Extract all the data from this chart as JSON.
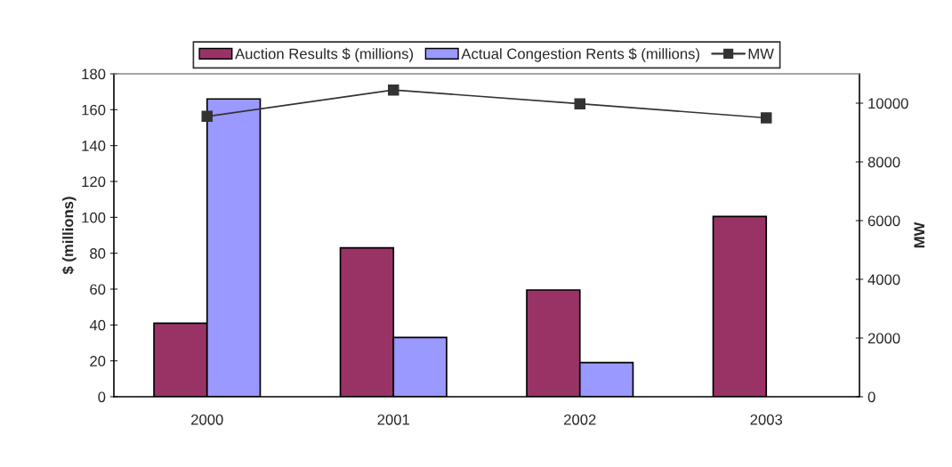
{
  "chart_data": {
    "type": "bar",
    "categories": [
      "2000",
      "2001",
      "2002",
      "2003"
    ],
    "ylabel": "$ (millions)",
    "y2label": "MW",
    "ylim": [
      0,
      180
    ],
    "yticks": [
      0,
      20,
      40,
      60,
      80,
      100,
      120,
      140,
      160,
      180
    ],
    "y2lim": [
      0,
      11000
    ],
    "y2ticks": [
      0,
      2000,
      4000,
      6000,
      8000,
      10000
    ],
    "legend": "top",
    "grid": false,
    "series": [
      {
        "name": "Auction Results $ (millions)",
        "color": "#993366",
        "values": [
          41,
          83,
          59.5,
          100.5
        ]
      },
      {
        "name": "Actual Congestion Rents $ (millions)",
        "color": "#9999ff",
        "values": [
          166,
          33,
          19,
          null
        ]
      },
      {
        "name": "MW",
        "type": "line",
        "axis": "y2",
        "color": "#333333",
        "marker": "square",
        "values": [
          9550,
          10450,
          9980,
          9500
        ]
      }
    ]
  }
}
